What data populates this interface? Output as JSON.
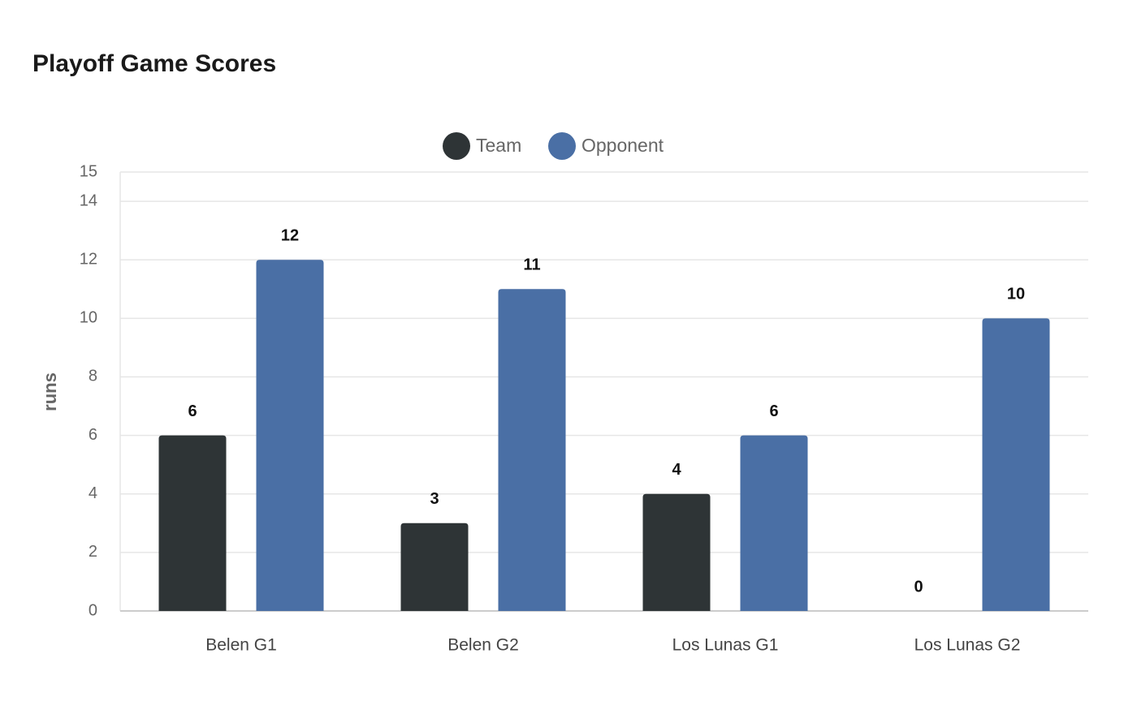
{
  "chart_data": {
    "type": "bar",
    "title": "Playoff Game Scores",
    "y_label": "runs",
    "categories": [
      "Belen G1",
      "Belen G2",
      "Los Lunas G1",
      "Los Lunas G2"
    ],
    "series": [
      {
        "name": "Team",
        "color": "#2e3436",
        "values": [
          6,
          3,
          4,
          0
        ]
      },
      {
        "name": "Opponent",
        "color": "#4a6fa5",
        "values": [
          12,
          11,
          6,
          10
        ]
      }
    ],
    "ylim": [
      0,
      15
    ],
    "yticks": [
      0,
      2,
      4,
      6,
      8,
      10,
      12,
      14,
      15
    ],
    "grid": true,
    "legend": "top"
  }
}
